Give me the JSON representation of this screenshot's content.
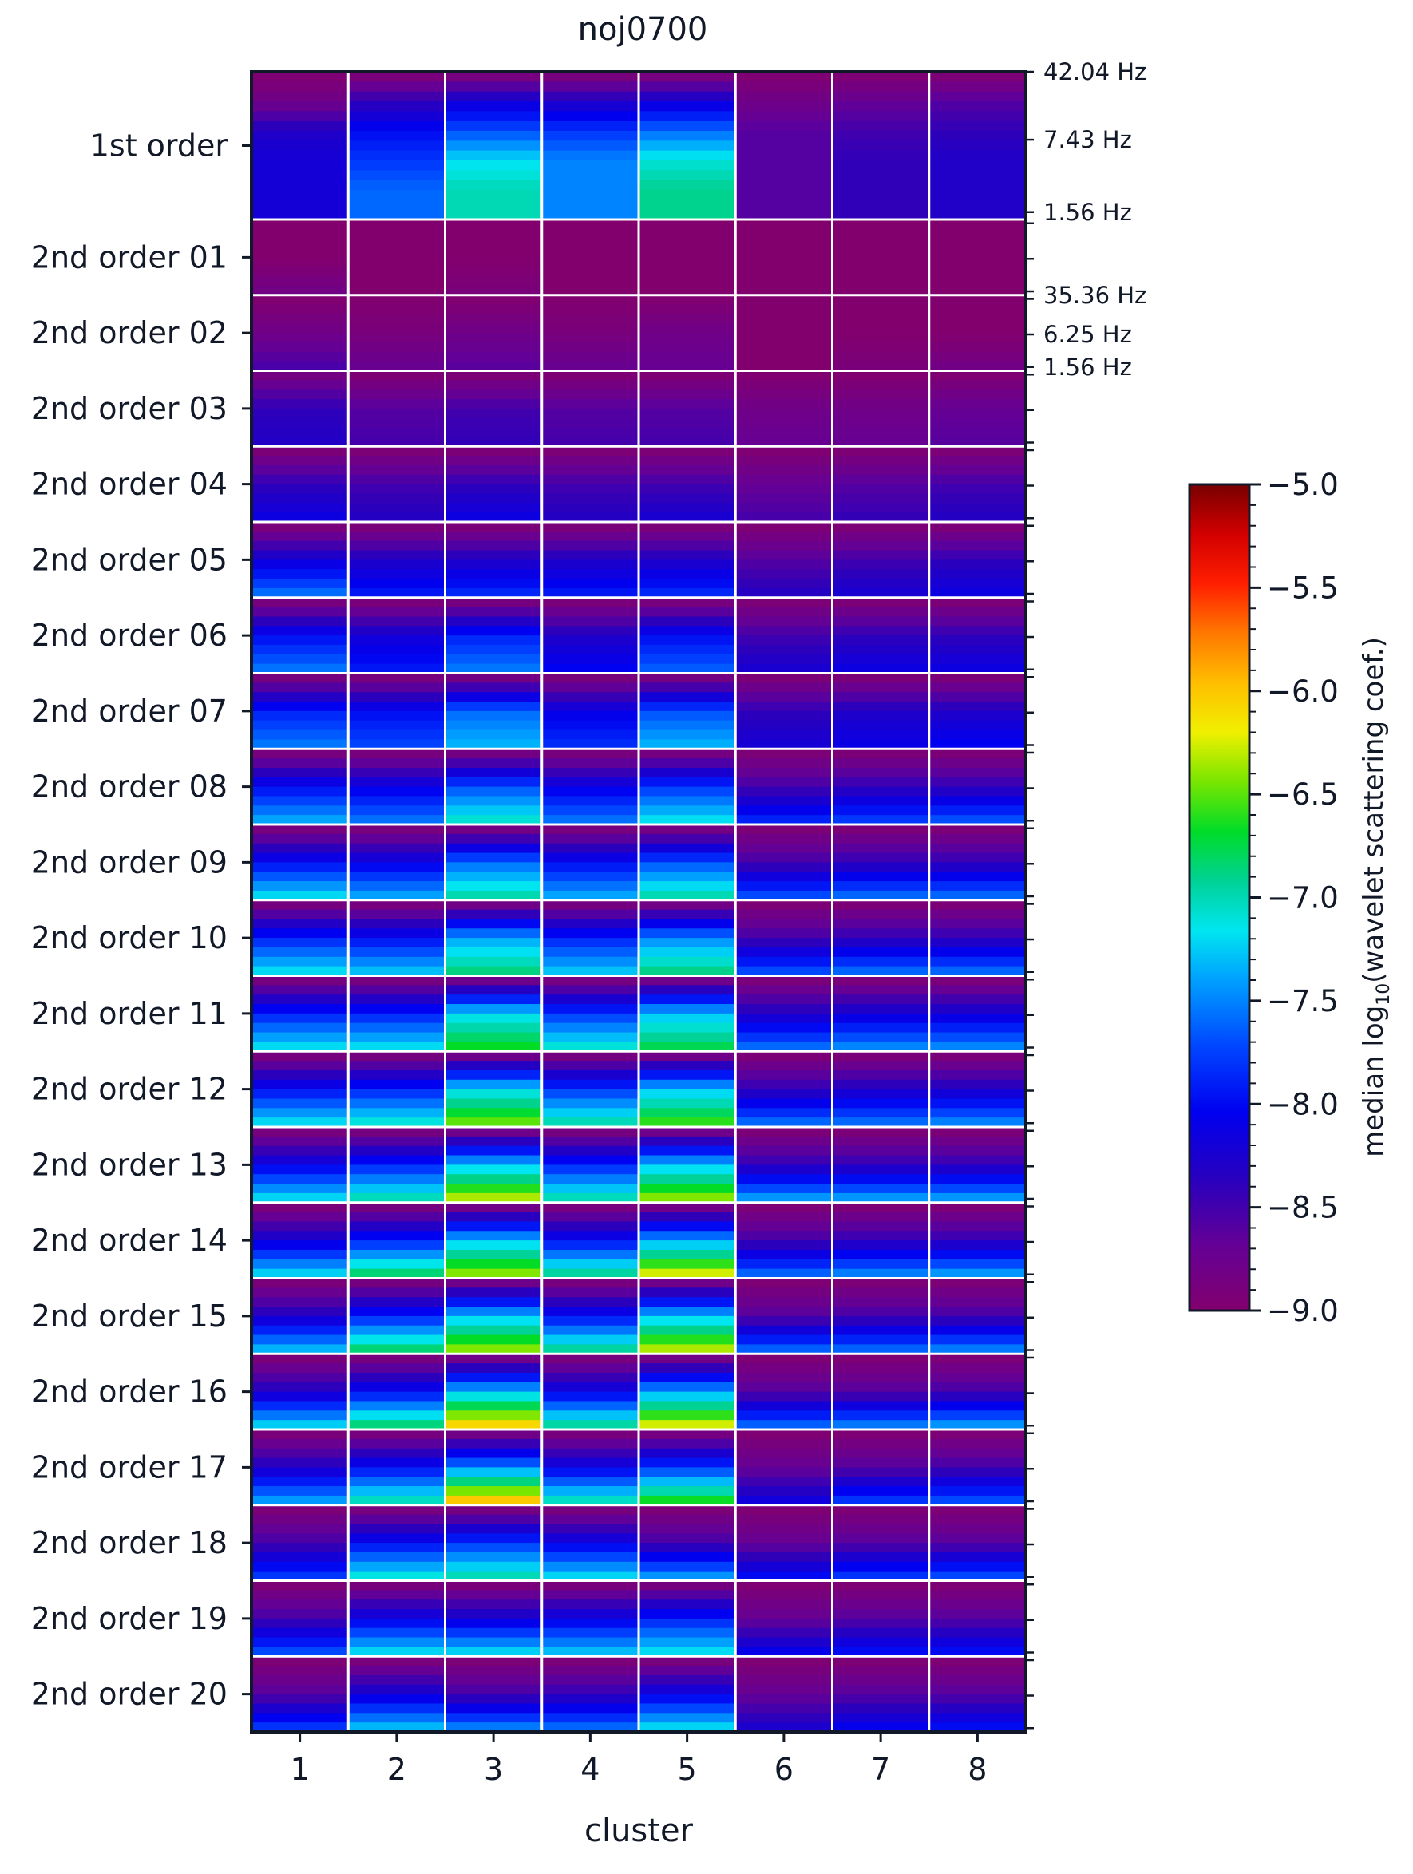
{
  "chart_data": {
    "type": "heatmap",
    "title": "noj0700",
    "xlabel": "cluster",
    "x_categories": [
      "1",
      "2",
      "3",
      "4",
      "5",
      "6",
      "7",
      "8"
    ],
    "row_groups": [
      "1st order",
      "2nd order 01",
      "2nd order 02",
      "2nd order 03",
      "2nd order 04",
      "2nd order 05",
      "2nd order 06",
      "2nd order 07",
      "2nd order 08",
      "2nd order 09",
      "2nd order 10",
      "2nd order 11",
      "2nd order 12",
      "2nd order 13",
      "2nd order 14",
      "2nd order 15",
      "2nd order 16",
      "2nd order 17",
      "2nd order 18",
      "2nd order 19",
      "2nd order 20"
    ],
    "right_tick_labels": [
      {
        "label": "42.04 Hz",
        "group": 0,
        "frac": 0.0
      },
      {
        "label": "7.43 Hz",
        "group": 0,
        "frac": 0.46
      },
      {
        "label": "1.56 Hz",
        "group": 0,
        "frac": 0.95
      },
      {
        "label": "35.36 Hz",
        "group": 2,
        "frac": 0.0
      },
      {
        "label": "6.25 Hz",
        "group": 2,
        "frac": 0.52
      },
      {
        "label": "1.56 Hz",
        "group": 2,
        "frac": 0.95
      }
    ],
    "colorbar": {
      "label_prefix": "median log",
      "label_sub": "10",
      "label_suffix": "(wavelet scattering coef.)",
      "min": -9.0,
      "max": -5.0,
      "ticks": [
        "−5.0",
        "−5.5",
        "−6.0",
        "−6.5",
        "−7.0",
        "−7.5",
        "−8.0",
        "−8.5",
        "−9.0"
      ],
      "colormap": "nipy_spectral-like (purple → blue → cyan → green → yellow → red → dark red)"
    },
    "group_profiles": [
      {
        "name": "1st order",
        "values_by_cluster": [
          [
            -9,
            -8.8,
            -8.3,
            -8.2,
            -8.2,
            -8.2
          ],
          [
            -9,
            -8.4,
            -8,
            -7.8,
            -7.6,
            -7.6
          ],
          [
            -9,
            -8.2,
            -7.7,
            -7.2,
            -7,
            -7
          ],
          [
            -9,
            -8.3,
            -7.8,
            -7.5,
            -7.5,
            -7.5
          ],
          [
            -9,
            -8.2,
            -7.6,
            -7.1,
            -6.9,
            -6.9
          ],
          [
            -9,
            -8.8,
            -8.6,
            -8.6,
            -8.6,
            -8.6
          ],
          [
            -9,
            -8.7,
            -8.5,
            -8.4,
            -8.4,
            -8.4
          ],
          [
            -9,
            -8.6,
            -8.4,
            -8.3,
            -8.3,
            -8.3
          ]
        ]
      },
      {
        "name": "2nd order 01",
        "values_by_cluster": [
          [
            -9,
            -9,
            -8.8
          ],
          [
            -9,
            -9,
            -9
          ],
          [
            -9,
            -9,
            -8.9
          ],
          [
            -9,
            -9,
            -9
          ],
          [
            -9,
            -9,
            -9
          ],
          [
            -9,
            -9,
            -9
          ],
          [
            -9,
            -9,
            -9
          ],
          [
            -9,
            -9,
            -9
          ]
        ]
      },
      {
        "name": "2nd order 02",
        "values_by_cluster": [
          [
            -9,
            -8.8,
            -8.5
          ],
          [
            -9,
            -8.9,
            -8.7
          ],
          [
            -9,
            -8.8,
            -8.6
          ],
          [
            -9,
            -8.9,
            -8.7
          ],
          [
            -9,
            -8.8,
            -8.7
          ],
          [
            -9,
            -9,
            -9
          ],
          [
            -9,
            -9,
            -8.9
          ],
          [
            -9,
            -9,
            -8.8
          ]
        ]
      },
      {
        "name": "2nd order 03",
        "values_by_cluster": [
          [
            -8.9,
            -8.4,
            -8.3
          ],
          [
            -9,
            -8.6,
            -8.5
          ],
          [
            -9,
            -8.5,
            -8.4
          ],
          [
            -9,
            -8.6,
            -8.5
          ],
          [
            -9,
            -8.6,
            -8.5
          ],
          [
            -9,
            -8.8,
            -8.7
          ],
          [
            -9,
            -8.8,
            -8.7
          ],
          [
            -9,
            -8.7,
            -8.6
          ]
        ]
      },
      {
        "name": "2nd order 04",
        "values_by_cluster": [
          [
            -9,
            -8.4,
            -8.1
          ],
          [
            -9,
            -8.5,
            -8.3
          ],
          [
            -9,
            -8.4,
            -8.1
          ],
          [
            -9,
            -8.5,
            -8.3
          ],
          [
            -9,
            -8.5,
            -8.2
          ],
          [
            -9,
            -8.7,
            -8.5
          ],
          [
            -9,
            -8.6,
            -8.4
          ],
          [
            -9,
            -8.5,
            -8.3
          ]
        ]
      },
      {
        "name": "2nd order 05",
        "values_by_cluster": [
          [
            -9,
            -8.2,
            -7.5
          ],
          [
            -9,
            -8.3,
            -7.9
          ],
          [
            -9,
            -8.3,
            -7.8
          ],
          [
            -9,
            -8.3,
            -7.9
          ],
          [
            -9,
            -8.3,
            -7.8
          ],
          [
            -9,
            -8.6,
            -8.3
          ],
          [
            -9,
            -8.5,
            -8.2
          ],
          [
            -9,
            -8.4,
            -8.1
          ]
        ]
      },
      {
        "name": "2nd order 06",
        "values_by_cluster": [
          [
            -9,
            -8,
            -7.5
          ],
          [
            -9,
            -8.2,
            -7.9
          ],
          [
            -9,
            -7.9,
            -7.5
          ],
          [
            -9,
            -8.3,
            -8
          ],
          [
            -9,
            -8,
            -7.6
          ],
          [
            -9,
            -8.5,
            -8.2
          ],
          [
            -9,
            -8.4,
            -8.1
          ],
          [
            -9,
            -8.4,
            -8.1
          ]
        ]
      },
      {
        "name": "2nd order 07",
        "values_by_cluster": [
          [
            -9,
            -7.9,
            -7.5
          ],
          [
            -9,
            -8,
            -7.7
          ],
          [
            -9,
            -7.6,
            -7.3
          ],
          [
            -9,
            -8.1,
            -7.8
          ],
          [
            -9,
            -7.7,
            -7.3
          ],
          [
            -9,
            -8.4,
            -8.2
          ],
          [
            -9,
            -8.3,
            -8.1
          ],
          [
            -9,
            -8.3,
            -8
          ]
        ]
      },
      {
        "name": "2nd order 08",
        "values_by_cluster": [
          [
            -9,
            -8,
            -7.3
          ],
          [
            -9,
            -8.1,
            -7.5
          ],
          [
            -9,
            -7.7,
            -7
          ],
          [
            -9,
            -8.1,
            -7.5
          ],
          [
            -9,
            -7.8,
            -7.1
          ],
          [
            -9,
            -8.5,
            -7.8
          ],
          [
            -9,
            -8.4,
            -7.7
          ],
          [
            -9,
            -8.4,
            -7.6
          ]
        ]
      },
      {
        "name": "2nd order 09",
        "values_by_cluster": [
          [
            -9,
            -8,
            -7.1
          ],
          [
            -9,
            -8.1,
            -7.3
          ],
          [
            -9,
            -7.6,
            -6.9
          ],
          [
            -9,
            -8,
            -7.3
          ],
          [
            -9,
            -7.7,
            -6.9
          ],
          [
            -9,
            -8.5,
            -7.6
          ],
          [
            -9,
            -8.4,
            -7.5
          ],
          [
            -9,
            -8.4,
            -7.5
          ]
        ]
      },
      {
        "name": "2nd order 10",
        "values_by_cluster": [
          [
            -9,
            -7.9,
            -7.1
          ],
          [
            -9,
            -8,
            -7.2
          ],
          [
            -9,
            -7.4,
            -6.8
          ],
          [
            -9,
            -7.9,
            -7.2
          ],
          [
            -9,
            -7.5,
            -6.8
          ],
          [
            -9,
            -8.5,
            -7.6
          ],
          [
            -9,
            -8.4,
            -7.5
          ],
          [
            -9,
            -8.4,
            -7.5
          ]
        ]
      },
      {
        "name": "2nd order 11",
        "values_by_cluster": [
          [
            -9,
            -7.9,
            -7.1
          ],
          [
            -9,
            -7.9,
            -7.1
          ],
          [
            -9,
            -7.2,
            -6.6
          ],
          [
            -9,
            -7.8,
            -7
          ],
          [
            -9,
            -7.3,
            -6.7
          ],
          [
            -9,
            -8.3,
            -7.5
          ],
          [
            -9,
            -8.2,
            -7.4
          ],
          [
            -9,
            -8.2,
            -7.4
          ]
        ]
      },
      {
        "name": "2nd order 12",
        "values_by_cluster": [
          [
            -9,
            -8,
            -7.1
          ],
          [
            -9,
            -7.9,
            -7
          ],
          [
            -9,
            -7.2,
            -6.4
          ],
          [
            -9,
            -7.8,
            -6.9
          ],
          [
            -9,
            -7.3,
            -6.5
          ],
          [
            -9,
            -8.4,
            -7.5
          ],
          [
            -9,
            -8.3,
            -7.5
          ],
          [
            -9,
            -8.3,
            -7.4
          ]
        ]
      },
      {
        "name": "2nd order 13",
        "values_by_cluster": [
          [
            -9,
            -8.1,
            -7.1
          ],
          [
            -9,
            -7.9,
            -6.9
          ],
          [
            -9,
            -7.3,
            -6.2
          ],
          [
            -9,
            -7.9,
            -6.9
          ],
          [
            -9,
            -7.3,
            -6.3
          ],
          [
            -9,
            -8.4,
            -7.3
          ],
          [
            -9,
            -8.4,
            -7.3
          ],
          [
            -9,
            -8.4,
            -7.3
          ]
        ]
      },
      {
        "name": "2nd order 14",
        "values_by_cluster": [
          [
            -9,
            -8.2,
            -7.1
          ],
          [
            -9,
            -7.9,
            -6.7
          ],
          [
            -9,
            -7.3,
            -6.3
          ],
          [
            -9,
            -8,
            -6.8
          ],
          [
            -9,
            -7.4,
            -6.1
          ],
          [
            -9,
            -8.5,
            -7.5
          ],
          [
            -9,
            -8.4,
            -7.4
          ],
          [
            -9,
            -8.4,
            -7.3
          ]
        ]
      },
      {
        "name": "2nd order 15",
        "values_by_cluster": [
          [
            -9,
            -8.3,
            -7.2
          ],
          [
            -9,
            -7.9,
            -6.7
          ],
          [
            -9,
            -7.3,
            -6.3
          ],
          [
            -9,
            -8,
            -6.8
          ],
          [
            -9,
            -7.3,
            -6.2
          ],
          [
            -9,
            -8.6,
            -7.5
          ],
          [
            -9,
            -8.5,
            -7.5
          ],
          [
            -9,
            -8.5,
            -7.4
          ]
        ]
      },
      {
        "name": "2nd order 16",
        "values_by_cluster": [
          [
            -9,
            -8.3,
            -7.1
          ],
          [
            -9,
            -8,
            -6.7
          ],
          [
            -9,
            -7.3,
            -5.9
          ],
          [
            -9,
            -8.1,
            -6.8
          ],
          [
            -9,
            -7.4,
            -6.1
          ],
          [
            -9,
            -8.6,
            -7.5
          ],
          [
            -9,
            -8.6,
            -7.4
          ],
          [
            -9,
            -8.5,
            -7.3
          ]
        ]
      },
      {
        "name": "2nd order 17",
        "values_by_cluster": [
          [
            -9,
            -8.3,
            -7.3
          ],
          [
            -9,
            -8,
            -6.9
          ],
          [
            -9,
            -7.5,
            -5.8
          ],
          [
            -9,
            -8.1,
            -6.9
          ],
          [
            -9,
            -7.8,
            -6.5
          ],
          [
            -9,
            -8.7,
            -8.1
          ],
          [
            -9,
            -8.6,
            -7.7
          ],
          [
            -9,
            -8.5,
            -7.6
          ]
        ]
      },
      {
        "name": "2nd order 18",
        "values_by_cluster": [
          [
            -9,
            -8.5,
            -7.7
          ],
          [
            -9,
            -8,
            -7
          ],
          [
            -9,
            -7.8,
            -6.9
          ],
          [
            -9,
            -8.1,
            -7.1
          ],
          [
            -9,
            -8.5,
            -7.3
          ],
          [
            -9,
            -8.7,
            -7.9
          ],
          [
            -9,
            -8.6,
            -7.7
          ],
          [
            -9,
            -8.6,
            -7.6
          ]
        ]
      },
      {
        "name": "2nd order 19",
        "values_by_cluster": [
          [
            -9,
            -8.5,
            -7.6
          ],
          [
            -9,
            -8.1,
            -7.1
          ],
          [
            -9,
            -8.2,
            -7.1
          ],
          [
            -9,
            -8.1,
            -7.2
          ],
          [
            -9,
            -7.9,
            -7.1
          ],
          [
            -9,
            -8.7,
            -8
          ],
          [
            -9,
            -8.6,
            -7.9
          ],
          [
            -9,
            -8.6,
            -7.9
          ]
        ]
      },
      {
        "name": "2nd order 20",
        "values_by_cluster": [
          [
            -9,
            -8.6,
            -7.7
          ],
          [
            -9,
            -8.2,
            -7.2
          ],
          [
            -9,
            -8.5,
            -7.4
          ],
          [
            -9,
            -8.4,
            -7.5
          ],
          [
            -9,
            -8.1,
            -7.1
          ],
          [
            -9,
            -8.7,
            -8.2
          ],
          [
            -9,
            -8.6,
            -8
          ],
          [
            -9,
            -8.6,
            -7.9
          ]
        ]
      }
    ]
  }
}
